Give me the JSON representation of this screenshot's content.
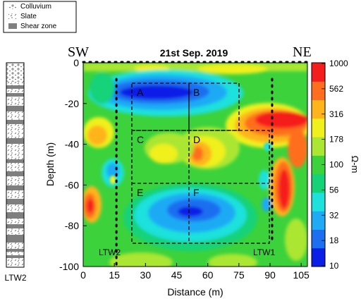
{
  "legend": {
    "items": [
      {
        "label": "Colluvium",
        "pattern": "colluvium"
      },
      {
        "label": "Slate",
        "pattern": "slate"
      },
      {
        "label": "Shear zone",
        "pattern": "shear"
      }
    ]
  },
  "labels": {
    "sw": "SW",
    "ne": "NE",
    "title": "21st Sep. 2019",
    "borehole_column": "LTW2",
    "well_left": "LTW2",
    "well_right": "LTW1",
    "unit": "Ω-m"
  },
  "zones": [
    "A",
    "B",
    "C",
    "D",
    "E",
    "F"
  ],
  "chart_data": {
    "type": "heatmap",
    "xlabel": "Distance (m)",
    "ylabel": "Depth (m)",
    "xlim": [
      0,
      108
    ],
    "ylim": [
      -100,
      0
    ],
    "xticks": [
      0,
      15,
      30,
      45,
      60,
      75,
      90,
      105
    ],
    "yticks": [
      0,
      -20,
      -40,
      -60,
      -80,
      -100
    ],
    "colorbar": {
      "ticks": [
        10,
        18,
        32,
        56,
        100,
        178,
        316,
        562,
        1000
      ],
      "colors": [
        "#0a1ee6",
        "#1e6ef0",
        "#1eaaf5",
        "#1ee1dc",
        "#14d278",
        "#3cd23c",
        "#aae632",
        "#f0f01e",
        "#ffb41e",
        "#ff6e1e",
        "#f51e1e"
      ]
    },
    "wells": [
      {
        "name": "LTW2",
        "x": 16
      },
      {
        "name": "LTW1",
        "x": 91
      }
    ]
  }
}
